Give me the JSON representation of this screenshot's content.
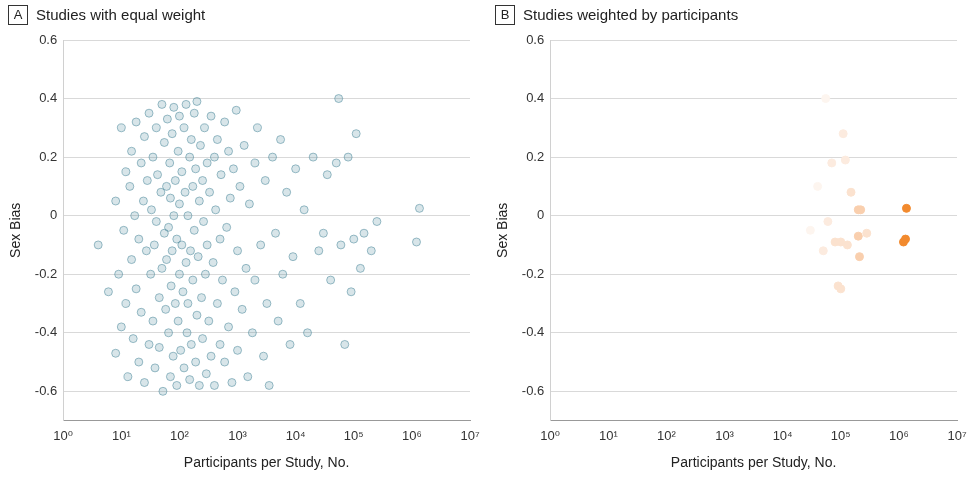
{
  "chart_data": [
    {
      "type": "scatter",
      "annotations": [
        "A"
      ],
      "title": "Studies with equal weight",
      "x_label": "Participants per Study, No.",
      "y_label": "Sex Bias",
      "log": "x",
      "grid": true,
      "xlim": [
        1,
        10000000
      ],
      "xticks": [
        {
          "value": 1,
          "label": "10⁰"
        },
        {
          "value": 10,
          "label": "10¹"
        },
        {
          "value": 100,
          "label": "10²"
        },
        {
          "value": 1000,
          "label": "10³"
        },
        {
          "value": 10000,
          "label": "10⁴"
        },
        {
          "value": 100000,
          "label": "10⁵"
        },
        {
          "value": 1000000,
          "label": "10⁶"
        },
        {
          "value": 10000000,
          "label": "10⁷"
        }
      ],
      "ylim": [
        -0.7,
        0.6
      ],
      "yticks": [
        -0.6,
        -0.4,
        -0.2,
        0,
        0.2,
        0.4,
        0.6
      ],
      "color": "#4f8a9c",
      "x": [
        4,
        6,
        8,
        8,
        9,
        10,
        10,
        11,
        12,
        12,
        13,
        14,
        15,
        15,
        16,
        17,
        18,
        18,
        20,
        20,
        22,
        22,
        24,
        25,
        25,
        27,
        28,
        30,
        30,
        32,
        33,
        35,
        35,
        37,
        38,
        40,
        40,
        42,
        45,
        45,
        48,
        50,
        50,
        52,
        55,
        55,
        58,
        60,
        60,
        62,
        65,
        65,
        68,
        70,
        70,
        72,
        75,
        75,
        78,
        80,
        80,
        85,
        85,
        90,
        90,
        95,
        95,
        100,
        100,
        100,
        105,
        110,
        110,
        115,
        120,
        120,
        125,
        130,
        130,
        135,
        140,
        140,
        150,
        150,
        155,
        160,
        160,
        170,
        170,
        180,
        180,
        190,
        190,
        200,
        200,
        210,
        220,
        220,
        230,
        240,
        250,
        250,
        260,
        270,
        280,
        290,
        300,
        300,
        320,
        330,
        350,
        350,
        380,
        400,
        400,
        420,
        450,
        450,
        500,
        500,
        520,
        550,
        600,
        600,
        650,
        700,
        700,
        750,
        800,
        850,
        900,
        950,
        1000,
        1000,
        1100,
        1200,
        1300,
        1400,
        1500,
        1600,
        1800,
        2000,
        2000,
        2200,
        2500,
        2800,
        3000,
        3200,
        3500,
        4000,
        4500,
        5000,
        5500,
        6000,
        7000,
        8000,
        9000,
        10000,
        12000,
        14000,
        16000,
        20000,
        25000,
        30000,
        35000,
        40000,
        50000,
        55000,
        60000,
        70000,
        80000,
        90000,
        100000,
        110000,
        130000,
        150000,
        200000,
        250000,
        1200000,
        1350000
      ],
      "values": [
        -0.1,
        -0.26,
        -0.47,
        0.05,
        -0.2,
        0.3,
        -0.38,
        -0.05,
        0.15,
        -0.3,
        -0.55,
        0.1,
        -0.15,
        0.22,
        -0.42,
        0.0,
        -0.25,
        0.32,
        -0.08,
        -0.5,
        0.18,
        -0.33,
        0.05,
        -0.57,
        0.27,
        -0.12,
        0.12,
        -0.44,
        0.35,
        -0.2,
        0.02,
        -0.36,
        0.2,
        -0.1,
        -0.52,
        0.3,
        -0.02,
        0.14,
        -0.28,
        -0.45,
        0.08,
        -0.18,
        0.38,
        -0.6,
        -0.06,
        0.25,
        -0.32,
        0.1,
        -0.15,
        0.33,
        -0.4,
        -0.04,
        0.18,
        -0.55,
        0.06,
        -0.24,
        0.28,
        -0.12,
        -0.48,
        0.0,
        0.37,
        -0.3,
        0.12,
        -0.58,
        -0.08,
        0.22,
        -0.36,
        0.04,
        -0.2,
        0.34,
        -0.46,
        0.15,
        -0.1,
        -0.26,
        0.3,
        -0.52,
        0.08,
        -0.16,
        0.38,
        -0.4,
        0.0,
        -0.3,
        0.2,
        -0.56,
        -0.12,
        0.26,
        -0.44,
        0.1,
        -0.22,
        0.35,
        -0.05,
        -0.5,
        0.16,
        -0.34,
        0.39,
        -0.14,
        0.05,
        -0.58,
        0.24,
        -0.28,
        0.12,
        -0.42,
        -0.02,
        0.3,
        -0.2,
        -0.54,
        0.18,
        -0.1,
        -0.36,
        0.08,
        0.34,
        -0.48,
        -0.16,
        0.2,
        -0.58,
        0.02,
        -0.3,
        0.26,
        -0.08,
        -0.44,
        0.14,
        -0.22,
        0.32,
        -0.5,
        -0.04,
        0.22,
        -0.38,
        0.06,
        -0.57,
        0.16,
        -0.26,
        0.36,
        -0.12,
        -0.46,
        0.1,
        -0.32,
        0.24,
        -0.18,
        -0.55,
        0.04,
        -0.4,
        0.18,
        -0.22,
        0.3,
        -0.1,
        -0.48,
        0.12,
        -0.3,
        -0.58,
        0.2,
        -0.06,
        -0.36,
        0.26,
        -0.2,
        0.08,
        -0.44,
        -0.14,
        0.16,
        -0.3,
        0.02,
        -0.4,
        0.2,
        -0.12,
        -0.06,
        0.14,
        -0.22,
        0.18,
        0.4,
        -0.1,
        -0.44,
        0.2,
        -0.26,
        -0.08,
        0.28,
        -0.18,
        -0.06,
        -0.12,
        -0.02,
        -0.09,
        0.025
      ]
    },
    {
      "type": "scatter",
      "annotations": [
        "B"
      ],
      "title": "Studies weighted by participants",
      "x_label": "Participants per Study, No.",
      "y_label": "Sex Bias",
      "log": "x",
      "grid": true,
      "xlim": [
        1,
        10000000
      ],
      "xticks": [
        {
          "value": 1,
          "label": "10⁰"
        },
        {
          "value": 10,
          "label": "10¹"
        },
        {
          "value": 100,
          "label": "10²"
        },
        {
          "value": 1000,
          "label": "10³"
        },
        {
          "value": 10000,
          "label": "10⁴"
        },
        {
          "value": 100000,
          "label": "10⁵"
        },
        {
          "value": 1000000,
          "label": "10⁶"
        },
        {
          "value": 10000000,
          "label": "10⁷"
        }
      ],
      "ylim": [
        -0.7,
        0.6
      ],
      "yticks": [
        -0.6,
        -0.4,
        -0.2,
        0,
        0.2,
        0.4,
        0.6
      ],
      "x": [
        30000,
        40000,
        50000,
        55000,
        60000,
        70000,
        80000,
        90000,
        100000,
        100000,
        110000,
        120000,
        130000,
        150000,
        200000,
        200000,
        220000,
        210000,
        280000,
        1200000,
        1300000,
        1350000
      ],
      "values": [
        -0.05,
        0.1,
        -0.12,
        0.4,
        -0.02,
        0.18,
        -0.09,
        -0.24,
        -0.09,
        -0.25,
        0.28,
        0.19,
        -0.1,
        0.08,
        0.02,
        -0.07,
        0.02,
        -0.14,
        -0.06,
        -0.09,
        -0.08,
        0.025
      ],
      "colors": [
        "#fdf5ef",
        "#fdf5ef",
        "#fcebdf",
        "#fdf5ef",
        "#fcebdf",
        "#fcebdf",
        "#fbe2cf",
        "#fbe2cf",
        "#fbe2cf",
        "#fbe2cf",
        "#fcebdf",
        "#fcebdf",
        "#fbe2cf",
        "#fbe2cf",
        "#f9cfae",
        "#f9cfae",
        "#f9cfae",
        "#f9cfae",
        "#fbe2cf",
        "#f28a2e",
        "#f28a2e",
        "#f28a2e"
      ]
    }
  ]
}
